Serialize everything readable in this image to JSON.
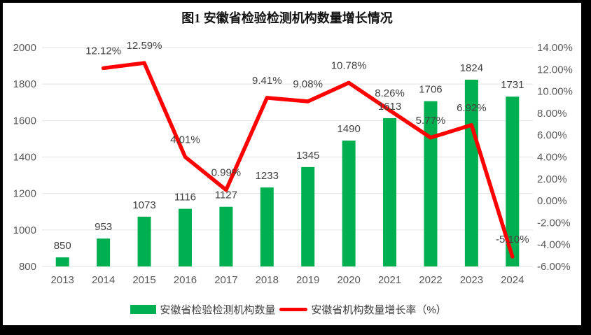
{
  "title": "图1 安徽省检验检测机构数量增长情况",
  "colors": {
    "bar": "#00B050",
    "line": "#FF0000",
    "grid": "#E2E2E2",
    "axis_text": "#595959",
    "label_text": "#404040",
    "frame": "#000000",
    "background": "#FFFFFF"
  },
  "legend": [
    {
      "swatch": "bar",
      "label": "安徽省检验检测机构数量"
    },
    {
      "swatch": "line",
      "label": "安徽省机构数量增长率（%）"
    }
  ],
  "chart_data": {
    "type": "bar+line",
    "title": "图1 安徽省检验检测机构数量增长情况",
    "categories": [
      "2013",
      "2014",
      "2015",
      "2016",
      "2017",
      "2018",
      "2019",
      "2020",
      "2021",
      "2022",
      "2023",
      "2024"
    ],
    "series": [
      {
        "name": "安徽省检验检测机构数量",
        "type": "bar",
        "axis": "left",
        "color": "#00B050",
        "values": [
          850,
          953,
          1073,
          1116,
          1127,
          1233,
          1345,
          1490,
          1613,
          1706,
          1824,
          1731
        ],
        "labels": [
          "850",
          "953",
          "1073",
          "1116",
          "1127",
          "1233",
          "1345",
          "1490",
          "1613",
          "1706",
          "1824",
          "1731"
        ]
      },
      {
        "name": "安徽省机构数量增长率（%）",
        "type": "line",
        "axis": "right",
        "color": "#FF0000",
        "values": [
          null,
          12.12,
          12.59,
          4.01,
          0.99,
          9.41,
          9.08,
          10.78,
          8.26,
          5.77,
          6.92,
          -5.1
        ],
        "labels": [
          null,
          "12.12%",
          "12.59%",
          "4.01%",
          "0.99%",
          "9.41%",
          "9.08%",
          "10.78%",
          "8.26%",
          "5.77%",
          "6.92%",
          "-5.10%"
        ]
      }
    ],
    "left_axis": {
      "min": 800,
      "max": 2000,
      "step": 200,
      "tick_labels": [
        "800",
        "1000",
        "1200",
        "1400",
        "1600",
        "1800",
        "2000"
      ]
    },
    "right_axis": {
      "min": -6,
      "max": 14,
      "step": 2,
      "tick_labels": [
        "-6.00%",
        "-4.00%",
        "-2.00%",
        "0.00%",
        "2.00%",
        "4.00%",
        "6.00%",
        "8.00%",
        "10.00%",
        "12.00%",
        "14.00%"
      ]
    },
    "grid": true,
    "legend_position": "bottom"
  }
}
